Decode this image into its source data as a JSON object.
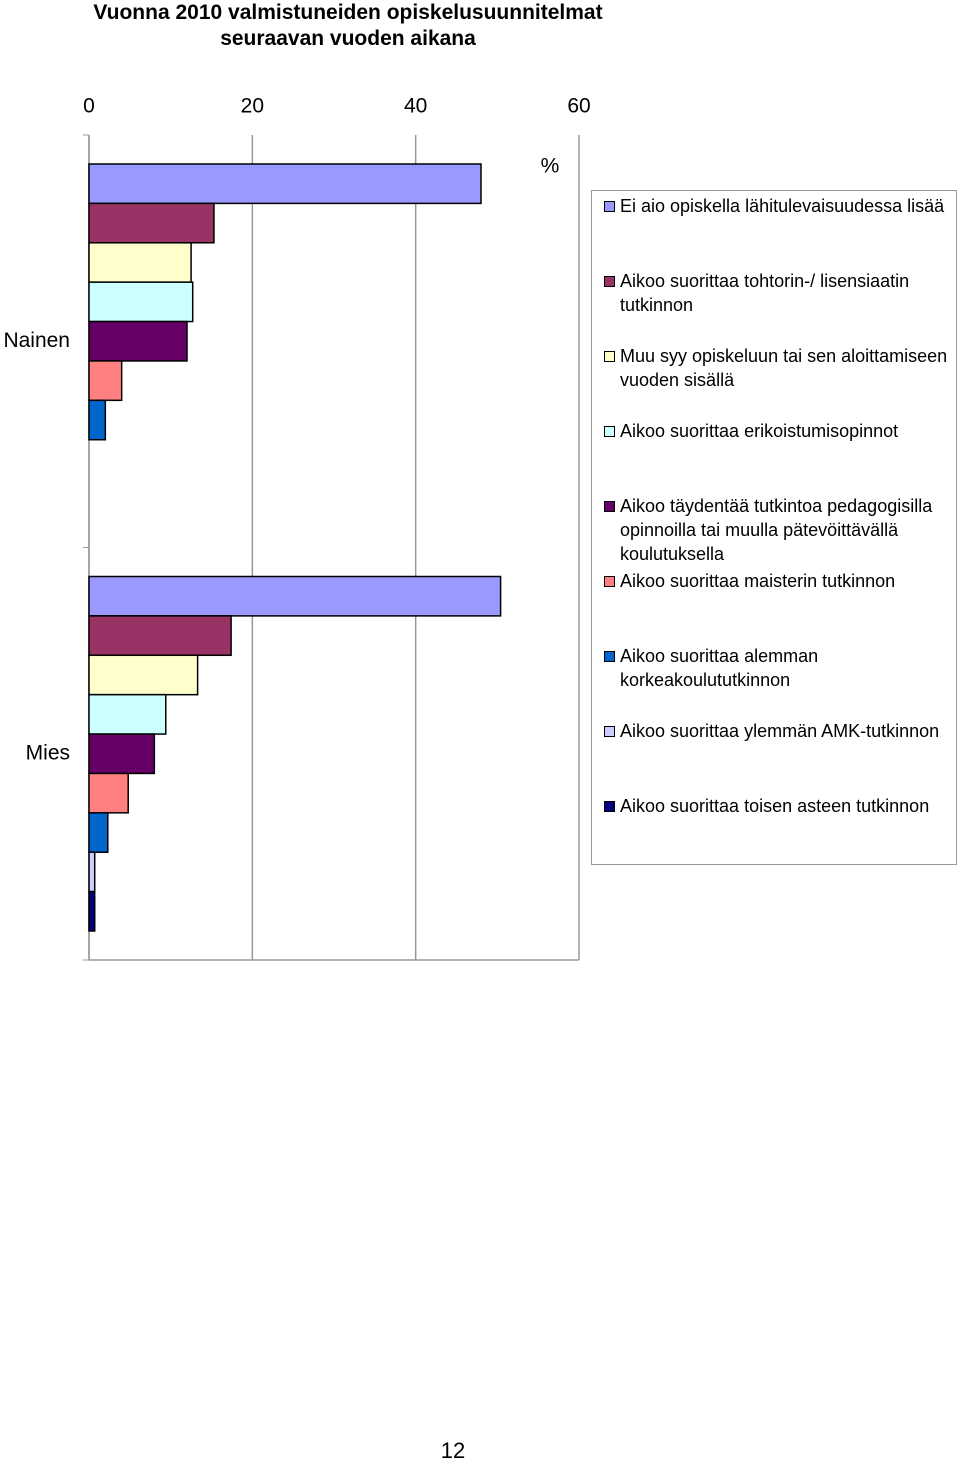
{
  "chart_data": {
    "type": "hbar",
    "title": "Vuonna 2010 valmistuneiden opiskelusuunnitelmat seuraavan vuoden aikana",
    "x_label": "%",
    "categories": [
      "Nainen",
      "Mies"
    ],
    "xlim": [
      0,
      60
    ],
    "xticks": [
      0,
      20,
      40,
      60
    ],
    "grid": true,
    "series": [
      {
        "name": "Ei aio opiskella lähitulevaisuudessa lisää",
        "color": "#9999ff",
        "values": [
          48,
          50.4
        ]
      },
      {
        "name": "Aikoo suorittaa tohtorin-/ lisensiaatin tutkinnon",
        "color": "#993366",
        "values": [
          15.3,
          17.4
        ]
      },
      {
        "name": "Muu syy opiskeluun tai sen aloittamiseen vuoden sisällä",
        "color": "#ffffcc",
        "values": [
          12.5,
          13.3
        ]
      },
      {
        "name": "Aikoo suorittaa erikoistumisopinnot",
        "color": "#ccffff",
        "values": [
          12.7,
          9.4
        ]
      },
      {
        "name": "Aikoo täydentää tutkintoa pedagogisilla opinnoilla tai muulla pätevöittävällä koulutuksella",
        "color": "#660066",
        "values": [
          12,
          8
        ]
      },
      {
        "name": "Aikoo suorittaa maisterin tutkinnon",
        "color": "#ff8080",
        "values": [
          4,
          4.8
        ]
      },
      {
        "name": "Aikoo suorittaa alemman korkeakoulututkinnon",
        "color": "#0066cc",
        "values": [
          2,
          2.3
        ]
      },
      {
        "name": "Aikoo suorittaa ylemmän AMK-tutkinnon",
        "color": "#ccccff",
        "values": [
          0,
          0.7
        ]
      },
      {
        "name": "Aikoo suorittaa toisen asteen tutkinnon",
        "color": "#000080",
        "values": [
          0,
          0.7
        ]
      }
    ]
  },
  "page_number": "12"
}
